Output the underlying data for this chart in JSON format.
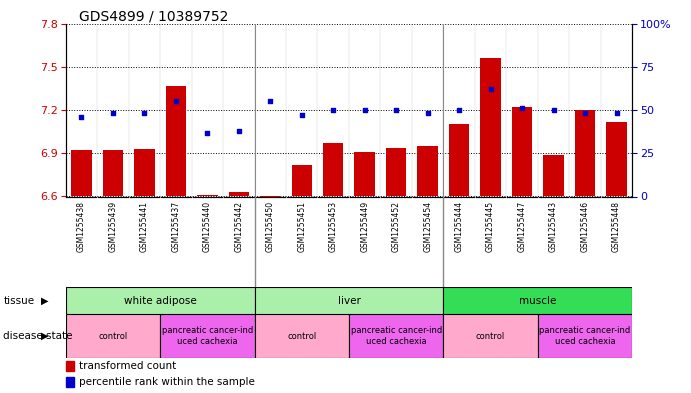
{
  "title": "GDS4899 / 10389752",
  "samples": [
    "GSM1255438",
    "GSM1255439",
    "GSM1255441",
    "GSM1255437",
    "GSM1255440",
    "GSM1255442",
    "GSM1255450",
    "GSM1255451",
    "GSM1255453",
    "GSM1255449",
    "GSM1255452",
    "GSM1255454",
    "GSM1255444",
    "GSM1255445",
    "GSM1255447",
    "GSM1255443",
    "GSM1255446",
    "GSM1255448"
  ],
  "red_values": [
    6.92,
    6.92,
    6.93,
    7.37,
    6.61,
    6.63,
    6.5,
    6.82,
    6.97,
    6.91,
    6.94,
    6.95,
    7.1,
    7.56,
    7.22,
    6.89,
    7.2,
    7.12
  ],
  "blue_values": [
    46,
    48,
    48,
    55,
    37,
    38,
    55,
    47,
    50,
    50,
    50,
    48,
    50,
    62,
    51,
    50,
    48,
    48
  ],
  "ylim_left": [
    6.6,
    7.8
  ],
  "ylim_right": [
    0,
    100
  ],
  "yticks_left": [
    6.6,
    6.9,
    7.2,
    7.5,
    7.8
  ],
  "yticks_right": [
    0,
    25,
    50,
    75,
    100
  ],
  "tissue_groups": [
    {
      "label": "white adipose",
      "start": 0,
      "end": 6,
      "color": "#aaf0aa"
    },
    {
      "label": "liver",
      "start": 6,
      "end": 12,
      "color": "#aaf0aa"
    },
    {
      "label": "muscle",
      "start": 12,
      "end": 18,
      "color": "#33dd55"
    }
  ],
  "disease_groups": [
    {
      "label": "control",
      "start": 0,
      "end": 3,
      "color": "#ffaacc"
    },
    {
      "label": "pancreatic cancer-ind\nuced cachexia",
      "start": 3,
      "end": 6,
      "color": "#ee66ee"
    },
    {
      "label": "control",
      "start": 6,
      "end": 9,
      "color": "#ffaacc"
    },
    {
      "label": "pancreatic cancer-ind\nuced cachexia",
      "start": 9,
      "end": 12,
      "color": "#ee66ee"
    },
    {
      "label": "control",
      "start": 12,
      "end": 15,
      "color": "#ffaacc"
    },
    {
      "label": "pancreatic cancer-ind\nuced cachexia",
      "start": 15,
      "end": 18,
      "color": "#ee66ee"
    }
  ],
  "bar_color": "#CC0000",
  "dot_color": "#0000CC",
  "plot_bg": "#ffffff",
  "xtick_bg": "#cccccc",
  "left_axis_color": "#CC0000",
  "right_axis_color": "#0000CC",
  "grid_color": "#000000",
  "group_dividers": [
    6,
    12
  ]
}
